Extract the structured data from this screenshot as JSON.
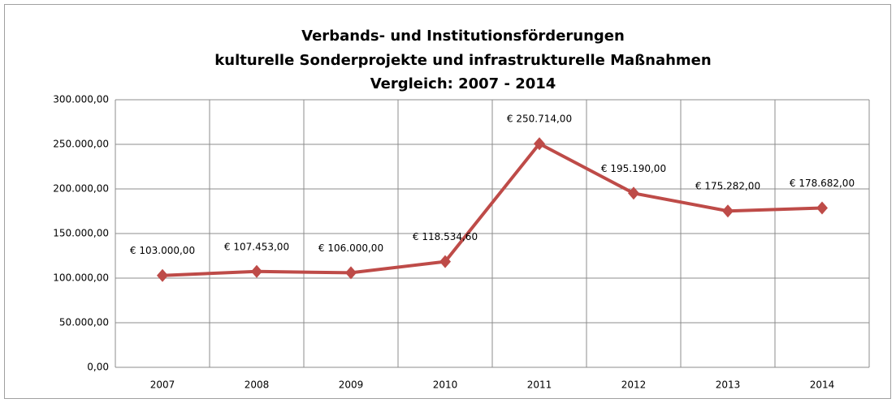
{
  "chart_data": {
    "type": "line",
    "title": [
      "Verbands- und Institutionsförderungen",
      "kulturelle Sonderprojekte und infrastrukturelle Maßnahmen",
      "Vergleich: 2007 - 2014"
    ],
    "categories": [
      "2007",
      "2008",
      "2009",
      "2010",
      "2011",
      "2012",
      "2013",
      "2014"
    ],
    "series": [
      {
        "color": "#be4b48",
        "values": [
          103000,
          107453,
          106000,
          118534.6,
          250714,
          195190,
          175282,
          178682
        ],
        "value_labels": [
          "€ 103.000,00",
          "€ 107.453,00",
          "€ 106.000,00",
          "€ 118.534,60",
          "€ 250.714,00",
          "€ 195.190,00",
          "€ 175.282,00",
          "€ 178.682,00"
        ]
      }
    ],
    "ylim": [
      0,
      300000
    ],
    "yticks": [
      {
        "value": 0,
        "label": "0,00"
      },
      {
        "value": 50000,
        "label": "50.000,00"
      },
      {
        "value": 100000,
        "label": "100.000,00"
      },
      {
        "value": 150000,
        "label": "150.000,00"
      },
      {
        "value": 200000,
        "label": "200.000,00"
      },
      {
        "value": 250000,
        "label": "250.000,00"
      },
      {
        "value": 300000,
        "label": "300.000,00"
      }
    ],
    "grid": true
  }
}
